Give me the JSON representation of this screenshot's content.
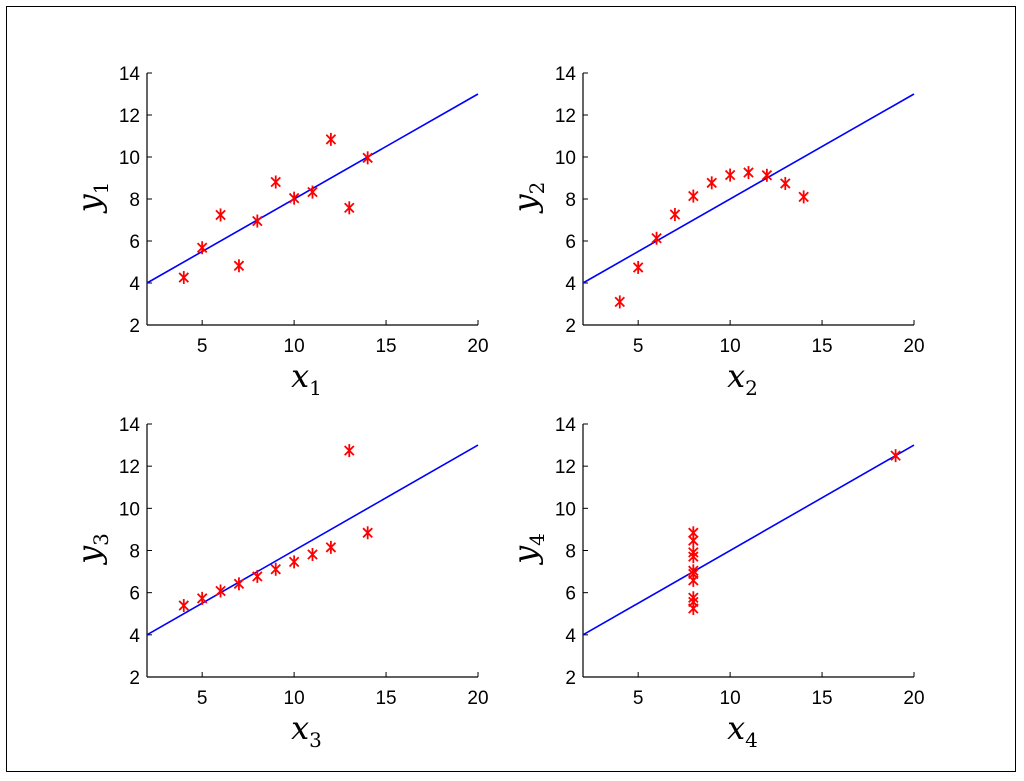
{
  "chart_data": [
    {
      "type": "scatter",
      "xlabel": "x",
      "xlabel_sub": "1",
      "ylabel": "y",
      "ylabel_sub": "1",
      "xlim": [
        2,
        20
      ],
      "ylim": [
        2,
        14
      ],
      "xticks": [
        "5",
        "10",
        "15",
        "20"
      ],
      "yticks": [
        "2",
        "4",
        "6",
        "8",
        "10",
        "12",
        "14"
      ],
      "points": {
        "x": [
          10,
          8,
          13,
          9,
          11,
          14,
          6,
          4,
          12,
          7,
          5
        ],
        "y": [
          8.04,
          6.95,
          7.58,
          8.81,
          8.33,
          9.96,
          7.24,
          4.26,
          10.84,
          4.82,
          5.68
        ]
      },
      "fit_line": {
        "x": [
          2,
          20
        ],
        "y": [
          4.0,
          13.0
        ]
      },
      "colors": {
        "points": "#ff0000",
        "line": "#0000ff"
      }
    },
    {
      "type": "scatter",
      "xlabel": "x",
      "xlabel_sub": "2",
      "ylabel": "y",
      "ylabel_sub": "2",
      "xlim": [
        2,
        20
      ],
      "ylim": [
        2,
        14
      ],
      "xticks": [
        "5",
        "10",
        "15",
        "20"
      ],
      "yticks": [
        "2",
        "4",
        "6",
        "8",
        "10",
        "12",
        "14"
      ],
      "points": {
        "x": [
          10,
          8,
          13,
          9,
          11,
          14,
          6,
          4,
          12,
          7,
          5
        ],
        "y": [
          9.14,
          8.14,
          8.74,
          8.77,
          9.26,
          8.1,
          6.13,
          3.1,
          9.13,
          7.26,
          4.74
        ]
      },
      "fit_line": {
        "x": [
          2,
          20
        ],
        "y": [
          4.0,
          13.0
        ]
      },
      "colors": {
        "points": "#ff0000",
        "line": "#0000ff"
      }
    },
    {
      "type": "scatter",
      "xlabel": "x",
      "xlabel_sub": "3",
      "ylabel": "y",
      "ylabel_sub": "3",
      "xlim": [
        2,
        20
      ],
      "ylim": [
        2,
        14
      ],
      "xticks": [
        "5",
        "10",
        "15",
        "20"
      ],
      "yticks": [
        "2",
        "4",
        "6",
        "8",
        "10",
        "12",
        "14"
      ],
      "points": {
        "x": [
          10,
          8,
          13,
          9,
          11,
          14,
          6,
          4,
          12,
          7,
          5
        ],
        "y": [
          7.46,
          6.77,
          12.74,
          7.11,
          7.81,
          8.84,
          6.08,
          5.39,
          8.15,
          6.42,
          5.73
        ]
      },
      "fit_line": {
        "x": [
          2,
          20
        ],
        "y": [
          4.0,
          13.0
        ]
      },
      "colors": {
        "points": "#ff0000",
        "line": "#0000ff"
      }
    },
    {
      "type": "scatter",
      "xlabel": "x",
      "xlabel_sub": "4",
      "ylabel": "y",
      "ylabel_sub": "4",
      "xlim": [
        2,
        20
      ],
      "ylim": [
        2,
        14
      ],
      "xticks": [
        "5",
        "10",
        "15",
        "20"
      ],
      "yticks": [
        "2",
        "4",
        "6",
        "8",
        "10",
        "12",
        "14"
      ],
      "points": {
        "x": [
          8,
          8,
          8,
          8,
          8,
          8,
          8,
          19,
          8,
          8,
          8
        ],
        "y": [
          6.58,
          5.76,
          7.71,
          8.84,
          8.47,
          7.04,
          5.25,
          12.5,
          5.56,
          7.91,
          6.89
        ]
      },
      "fit_line": {
        "x": [
          2,
          20
        ],
        "y": [
          4.0,
          13.0
        ]
      },
      "colors": {
        "points": "#ff0000",
        "line": "#0000ff"
      }
    }
  ]
}
